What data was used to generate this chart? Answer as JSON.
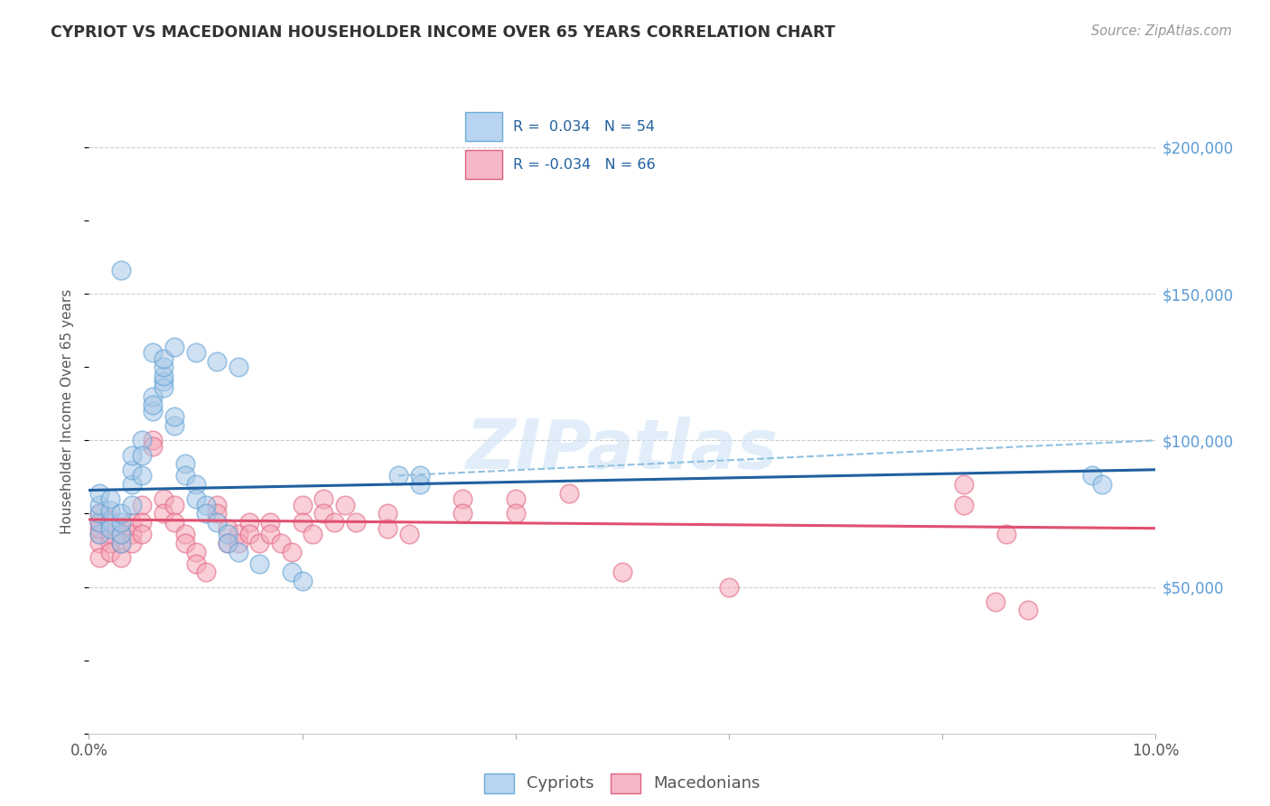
{
  "title": "CYPRIOT VS MACEDONIAN HOUSEHOLDER INCOME OVER 65 YEARS CORRELATION CHART",
  "source": "Source: ZipAtlas.com",
  "ylabel": "Householder Income Over 65 years",
  "color_cypriot_fill": "#a8c8e8",
  "color_cypriot_edge": "#5a9fd4",
  "color_macedonian_fill": "#f5a8b8",
  "color_macedonian_edge": "#e06080",
  "color_blue_line": "#2060a0",
  "color_pink_line": "#e05070",
  "color_dashed_line": "#90c0e0",
  "background_color": "#ffffff",
  "xlim": [
    0.0,
    0.1
  ],
  "ylim": [
    0,
    220000
  ],
  "ytick_right_vals": [
    50000,
    100000,
    150000,
    200000
  ],
  "ytick_right_labels": [
    "$50,000",
    "$100,000",
    "$150,000",
    "$200,000"
  ],
  "cyp_line_x": [
    0.0,
    0.1
  ],
  "cyp_line_y": [
    83000,
    90000
  ],
  "mac_line_x": [
    0.0,
    0.1
  ],
  "mac_line_y": [
    73000,
    70000
  ],
  "dash_line_x": [
    0.029,
    0.1
  ],
  "dash_line_y": [
    88000,
    100000
  ],
  "cypriot_x": [
    0.001,
    0.001,
    0.001,
    0.001,
    0.001,
    0.002,
    0.002,
    0.002,
    0.002,
    0.003,
    0.003,
    0.003,
    0.003,
    0.004,
    0.004,
    0.004,
    0.004,
    0.005,
    0.005,
    0.005,
    0.006,
    0.006,
    0.006,
    0.007,
    0.007,
    0.007,
    0.007,
    0.008,
    0.008,
    0.009,
    0.009,
    0.01,
    0.01,
    0.011,
    0.011,
    0.012,
    0.013,
    0.013,
    0.014,
    0.016,
    0.019,
    0.02,
    0.029,
    0.031,
    0.003,
    0.006,
    0.007,
    0.008,
    0.01,
    0.012,
    0.014,
    0.031,
    0.094,
    0.095
  ],
  "cypriot_y": [
    68000,
    72000,
    75000,
    78000,
    82000,
    72000,
    76000,
    80000,
    70000,
    65000,
    68000,
    72000,
    75000,
    85000,
    90000,
    95000,
    78000,
    100000,
    95000,
    88000,
    110000,
    115000,
    112000,
    120000,
    118000,
    122000,
    125000,
    105000,
    108000,
    92000,
    88000,
    85000,
    80000,
    78000,
    75000,
    72000,
    68000,
    65000,
    62000,
    58000,
    55000,
    52000,
    88000,
    85000,
    158000,
    130000,
    128000,
    132000,
    130000,
    127000,
    125000,
    88000,
    88000,
    85000
  ],
  "macedonian_x": [
    0.001,
    0.001,
    0.001,
    0.001,
    0.001,
    0.001,
    0.002,
    0.002,
    0.002,
    0.002,
    0.003,
    0.003,
    0.003,
    0.003,
    0.004,
    0.004,
    0.004,
    0.005,
    0.005,
    0.005,
    0.006,
    0.006,
    0.007,
    0.007,
    0.008,
    0.008,
    0.009,
    0.009,
    0.01,
    0.01,
    0.011,
    0.012,
    0.012,
    0.013,
    0.013,
    0.014,
    0.014,
    0.015,
    0.015,
    0.016,
    0.017,
    0.017,
    0.018,
    0.019,
    0.02,
    0.02,
    0.021,
    0.022,
    0.022,
    0.023,
    0.024,
    0.025,
    0.028,
    0.028,
    0.03,
    0.035,
    0.035,
    0.04,
    0.04,
    0.045,
    0.05,
    0.06,
    0.082,
    0.082,
    0.085,
    0.086,
    0.088
  ],
  "macedonian_y": [
    68000,
    72000,
    75000,
    65000,
    70000,
    60000,
    73000,
    68000,
    65000,
    62000,
    70000,
    65000,
    60000,
    68000,
    72000,
    68000,
    65000,
    78000,
    72000,
    68000,
    100000,
    98000,
    80000,
    75000,
    78000,
    72000,
    68000,
    65000,
    62000,
    58000,
    55000,
    78000,
    75000,
    70000,
    65000,
    68000,
    65000,
    72000,
    68000,
    65000,
    72000,
    68000,
    65000,
    62000,
    78000,
    72000,
    68000,
    80000,
    75000,
    72000,
    78000,
    72000,
    75000,
    70000,
    68000,
    80000,
    75000,
    80000,
    75000,
    82000,
    55000,
    50000,
    85000,
    78000,
    45000,
    68000,
    42000
  ]
}
